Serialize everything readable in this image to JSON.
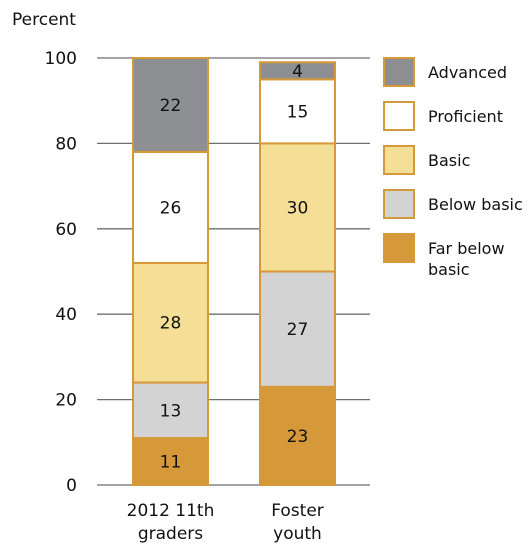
{
  "chart_data": {
    "type": "bar",
    "stacked": true,
    "ylabel": "Percent",
    "ylim": [
      0,
      100
    ],
    "yticks": [
      0,
      20,
      40,
      60,
      80,
      100
    ],
    "grid": true,
    "legend_position": "right",
    "categories": [
      "2012 11th graders",
      "Foster youth"
    ],
    "category_lines": [
      [
        "2012 11th",
        "graders"
      ],
      [
        "Foster",
        "youth"
      ]
    ],
    "series": [
      {
        "name": "Far below basic",
        "legend_lines": [
          "Far below",
          "basic"
        ],
        "values": [
          11,
          23
        ],
        "color": "#d6993a"
      },
      {
        "name": "Below basic",
        "legend_lines": [
          "Below basic"
        ],
        "values": [
          13,
          27
        ],
        "color": "#d3d3d4"
      },
      {
        "name": "Basic",
        "legend_lines": [
          "Basic"
        ],
        "values": [
          28,
          30
        ],
        "color": "#f5df96"
      },
      {
        "name": "Proficient",
        "legend_lines": [
          "Proficient"
        ],
        "values": [
          26,
          15
        ],
        "color": "#ffffff"
      },
      {
        "name": "Advanced",
        "legend_lines": [
          "Advanced"
        ],
        "values": [
          22,
          4
        ],
        "color": "#8e8f92"
      }
    ],
    "legend_order": [
      "Advanced",
      "Proficient",
      "Basic",
      "Below basic",
      "Far below basic"
    ],
    "colors": {
      "bar_outline": "#d6993a",
      "gridline": "#6d6e71",
      "text": "#111111"
    }
  }
}
